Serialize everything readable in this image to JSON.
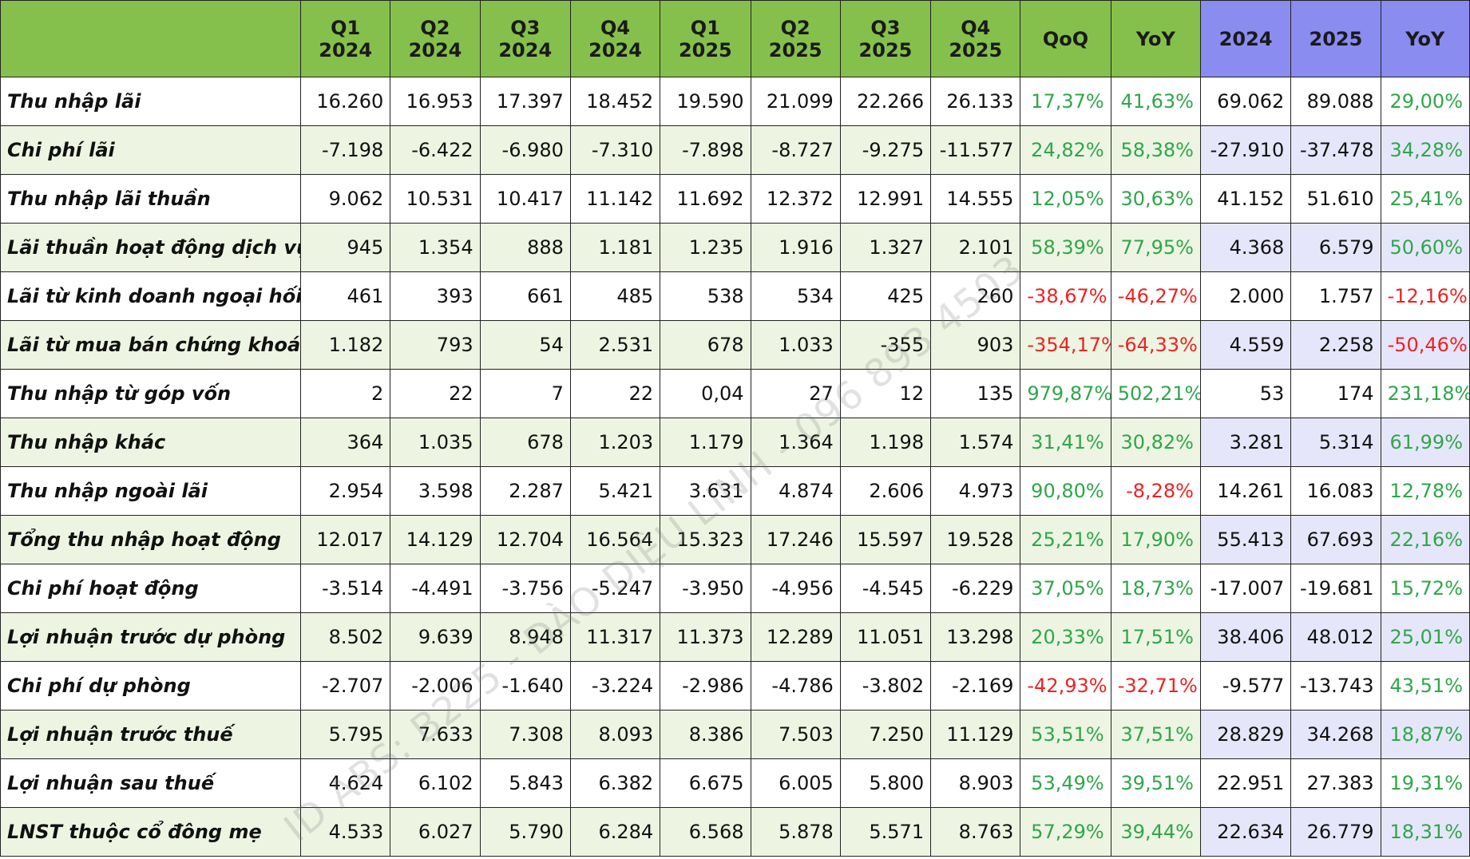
{
  "header": {
    "corner": "",
    "columns": [
      {
        "line1": "Q1",
        "line2": "2024",
        "kind": "q"
      },
      {
        "line1": "Q2",
        "line2": "2024",
        "kind": "q"
      },
      {
        "line1": "Q3",
        "line2": "2024",
        "kind": "q"
      },
      {
        "line1": "Q4",
        "line2": "2024",
        "kind": "q"
      },
      {
        "line1": "Q1",
        "line2": "2025",
        "kind": "q"
      },
      {
        "line1": "Q2",
        "line2": "2025",
        "kind": "q"
      },
      {
        "line1": "Q3",
        "line2": "2025",
        "kind": "q"
      },
      {
        "line1": "Q4",
        "line2": "2025",
        "kind": "q"
      },
      {
        "line1": "QoQ",
        "line2": "",
        "kind": "q"
      },
      {
        "line1": "YoY",
        "line2": "",
        "kind": "q"
      },
      {
        "line1": "2024",
        "line2": "",
        "kind": "yr"
      },
      {
        "line1": "2025",
        "line2": "",
        "kind": "yr"
      },
      {
        "line1": "YoY",
        "line2": "",
        "kind": "yr"
      }
    ]
  },
  "rows": [
    {
      "label": "Thu nhập lãi",
      "values": [
        "16.260",
        "16.953",
        "17.397",
        "18.452",
        "19.590",
        "21.099",
        "22.266",
        "26.133",
        "17,37%",
        "41,63%",
        "69.062",
        "89.088",
        "29,00%"
      ]
    },
    {
      "label": "Chi phí lãi",
      "values": [
        "-7.198",
        "-6.422",
        "-6.980",
        "-7.310",
        "-7.898",
        "-8.727",
        "-9.275",
        "-11.577",
        "24,82%",
        "58,38%",
        "-27.910",
        "-37.478",
        "34,28%"
      ]
    },
    {
      "label": "Thu nhập lãi thuần",
      "values": [
        "9.062",
        "10.531",
        "10.417",
        "11.142",
        "11.692",
        "12.372",
        "12.991",
        "14.555",
        "12,05%",
        "30,63%",
        "41.152",
        "51.610",
        "25,41%"
      ]
    },
    {
      "label": "Lãi thuần hoạt động dịch vụ",
      "values": [
        "945",
        "1.354",
        "888",
        "1.181",
        "1.235",
        "1.916",
        "1.327",
        "2.101",
        "58,39%",
        "77,95%",
        "4.368",
        "6.579",
        "50,60%"
      ]
    },
    {
      "label": "Lãi từ kinh doanh ngoại hối",
      "values": [
        "461",
        "393",
        "661",
        "485",
        "538",
        "534",
        "425",
        "260",
        "-38,67%",
        "-46,27%",
        "2.000",
        "1.757",
        "-12,16%"
      ]
    },
    {
      "label": "Lãi từ mua bán chứng khoán",
      "values": [
        "1.182",
        "793",
        "54",
        "2.531",
        "678",
        "1.033",
        "-355",
        "903",
        "-354,17%",
        "-64,33%",
        "4.559",
        "2.258",
        "-50,46%"
      ]
    },
    {
      "label": "Thu nhập từ góp vốn",
      "values": [
        "2",
        "22",
        "7",
        "22",
        "0,04",
        "27",
        "12",
        "135",
        "979,87%",
        "502,21%",
        "53",
        "174",
        "231,18%"
      ]
    },
    {
      "label": "Thu nhập khác",
      "values": [
        "364",
        "1.035",
        "678",
        "1.203",
        "1.179",
        "1.364",
        "1.198",
        "1.574",
        "31,41%",
        "30,82%",
        "3.281",
        "5.314",
        "61,99%"
      ]
    },
    {
      "label": "Thu nhập ngoài lãi",
      "values": [
        "2.954",
        "3.598",
        "2.287",
        "5.421",
        "3.631",
        "4.874",
        "2.606",
        "4.973",
        "90,80%",
        "-8,28%",
        "14.261",
        "16.083",
        "12,78%"
      ]
    },
    {
      "label": "Tổng thu nhập hoạt động",
      "values": [
        "12.017",
        "14.129",
        "12.704",
        "16.564",
        "15.323",
        "17.246",
        "15.597",
        "19.528",
        "25,21%",
        "17,90%",
        "55.413",
        "67.693",
        "22,16%"
      ]
    },
    {
      "label": "Chi phí hoạt động",
      "values": [
        "-3.514",
        "-4.491",
        "-3.756",
        "-5.247",
        "-3.950",
        "-4.956",
        "-4.545",
        "-6.229",
        "37,05%",
        "18,73%",
        "-17.007",
        "-19.681",
        "15,72%"
      ]
    },
    {
      "label": "Lợi nhuận trước dự phòng",
      "values": [
        "8.502",
        "9.639",
        "8.948",
        "11.317",
        "11.373",
        "12.289",
        "11.051",
        "13.298",
        "20,33%",
        "17,51%",
        "38.406",
        "48.012",
        "25,01%"
      ]
    },
    {
      "label": "Chi phí dự phòng",
      "values": [
        "-2.707",
        "-2.006",
        "-1.640",
        "-3.224",
        "-2.986",
        "-4.786",
        "-3.802",
        "-2.169",
        "-42,93%",
        "-32,71%",
        "-9.577",
        "-13.743",
        "43,51%"
      ]
    },
    {
      "label": "Lợi nhuận trước thuế",
      "values": [
        "5.795",
        "7.633",
        "7.308",
        "8.093",
        "8.386",
        "7.503",
        "7.250",
        "11.129",
        "53,51%",
        "37,51%",
        "28.829",
        "34.268",
        "18,87%"
      ]
    },
    {
      "label": "Lợi nhuận sau thuế",
      "values": [
        "4.624",
        "6.102",
        "5.843",
        "6.382",
        "6.675",
        "6.005",
        "5.800",
        "8.903",
        "53,49%",
        "39,51%",
        "22.951",
        "27.383",
        "19,31%"
      ]
    },
    {
      "label": "LNST thuộc cổ đông mẹ",
      "values": [
        "4.533",
        "6.027",
        "5.790",
        "6.284",
        "6.568",
        "5.878",
        "5.571",
        "8.763",
        "57,29%",
        "39,44%",
        "22.634",
        "26.779",
        "18,31%"
      ]
    }
  ],
  "watermark": "ID ABS: B225 - ĐÀO DIỆU LINH - 096 893 4503",
  "colors": {
    "header_quarter": "#86c04c",
    "header_year": "#8a8cf0",
    "positive": "#2fa64a",
    "negative": "#ee2222"
  }
}
